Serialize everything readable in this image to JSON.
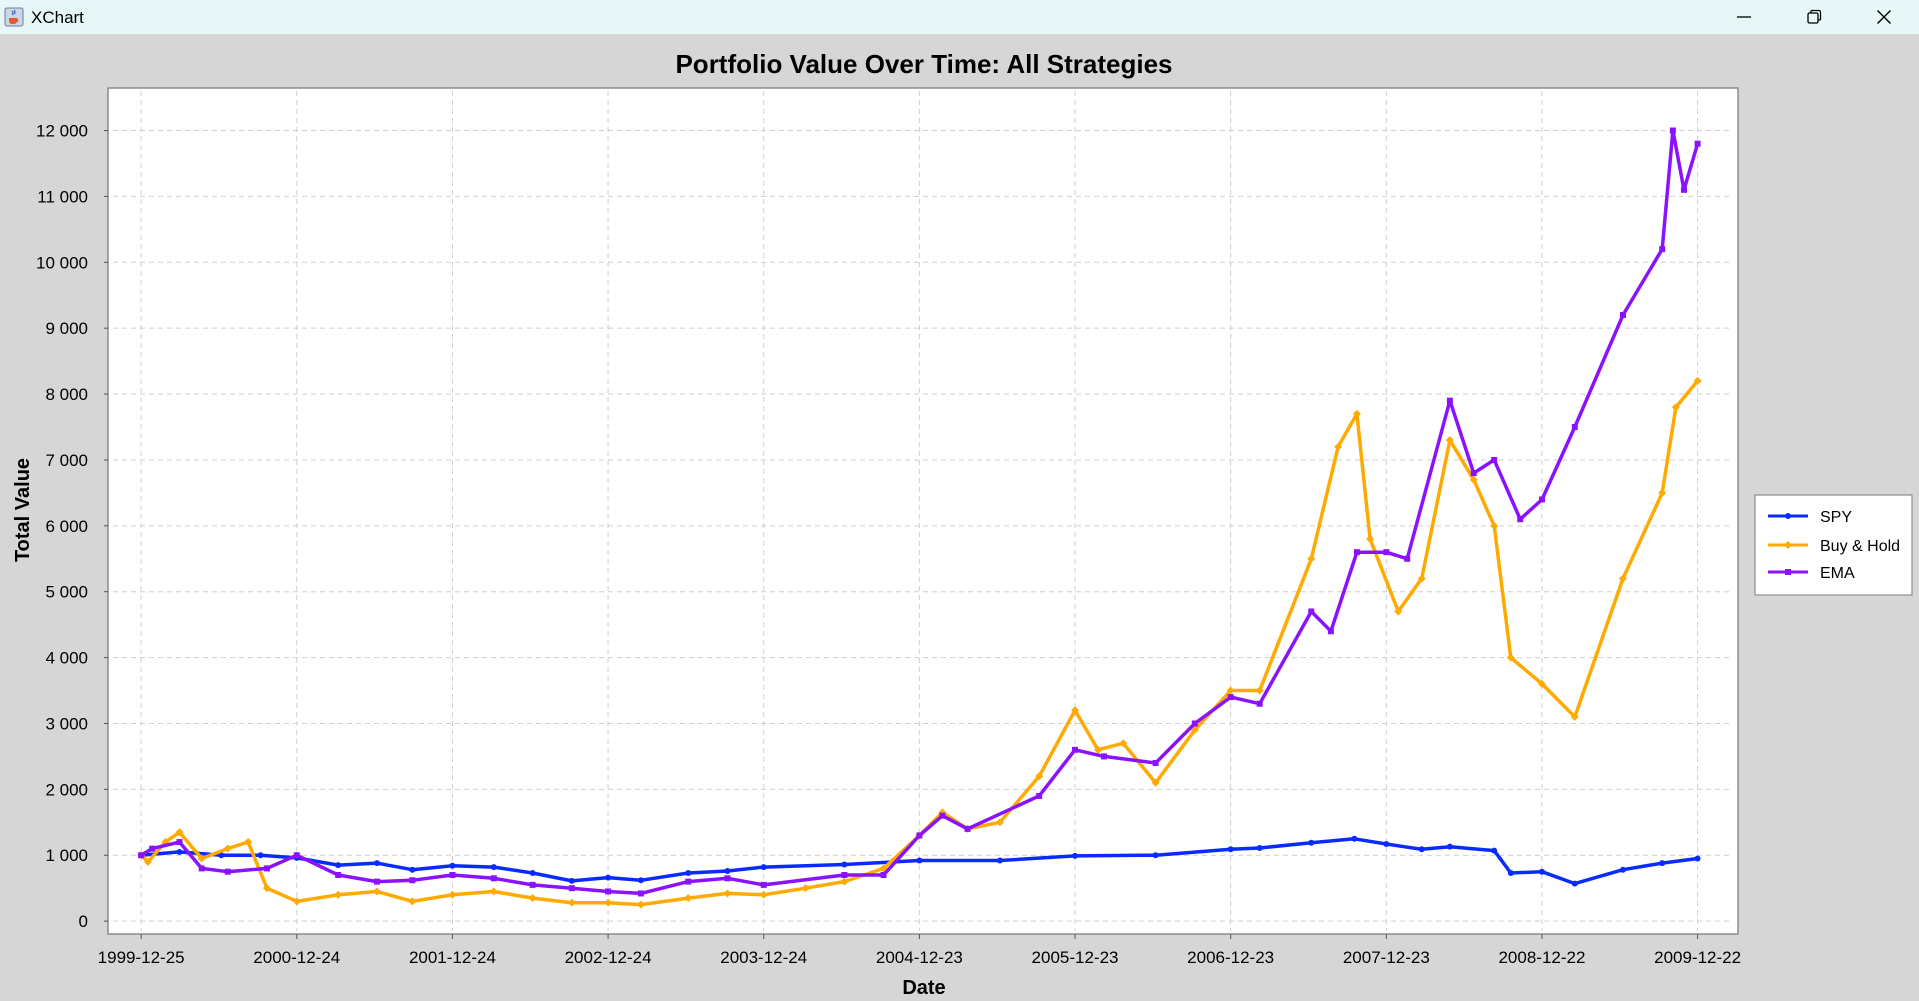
{
  "window": {
    "title": "XChart",
    "app_icon": "java-cup-icon",
    "controls": [
      "minimize-icon",
      "restore-icon",
      "close-icon"
    ]
  },
  "colors": {
    "window_bg": "#d6d6d6",
    "titlebar_bg": "#e7f6f6",
    "plot_bg": "#ffffff",
    "grid": "#cfcfcf"
  },
  "chart_data": {
    "type": "line",
    "title": "Portfolio Value Over Time: All Strategies",
    "xlabel": "Date",
    "ylabel": "Total Value",
    "x_ticks": [
      "1999-12-25",
      "2000-12-24",
      "2001-12-24",
      "2002-12-24",
      "2003-12-24",
      "2004-12-23",
      "2005-12-23",
      "2006-12-23",
      "2007-12-23",
      "2008-12-22",
      "2009-12-22"
    ],
    "y_ticks": [
      "0",
      "1 000",
      "2 000",
      "3 000",
      "4 000",
      "5 000",
      "6 000",
      "7 000",
      "8 000",
      "9 000",
      "10 000",
      "11 000",
      "12 000"
    ],
    "ylim": [
      -150,
      12600
    ],
    "xlim": [
      "1999-10-20",
      "2010-03-15"
    ],
    "grid": true,
    "legend_position": "right",
    "series": [
      {
        "name": "SPY",
        "color": "#0a2bff",
        "marker": "circle",
        "points": [
          [
            "1999-12-25",
            1000
          ],
          [
            "2000-03-24",
            1050
          ],
          [
            "2000-06-30",
            1000
          ],
          [
            "2000-09-30",
            1000
          ],
          [
            "2000-12-24",
            960
          ],
          [
            "2001-03-31",
            850
          ],
          [
            "2001-06-30",
            880
          ],
          [
            "2001-09-21",
            780
          ],
          [
            "2001-12-24",
            840
          ],
          [
            "2002-03-31",
            820
          ],
          [
            "2002-06-30",
            730
          ],
          [
            "2002-09-30",
            610
          ],
          [
            "2002-12-24",
            660
          ],
          [
            "2003-03-11",
            620
          ],
          [
            "2003-06-30",
            730
          ],
          [
            "2003-09-30",
            760
          ],
          [
            "2003-12-24",
            820
          ],
          [
            "2004-06-30",
            860
          ],
          [
            "2004-12-23",
            920
          ],
          [
            "2005-06-30",
            920
          ],
          [
            "2005-12-23",
            990
          ],
          [
            "2006-06-30",
            1000
          ],
          [
            "2006-12-23",
            1090
          ],
          [
            "2007-03-01",
            1110
          ],
          [
            "2007-06-30",
            1190
          ],
          [
            "2007-10-09",
            1250
          ],
          [
            "2007-12-23",
            1170
          ],
          [
            "2008-03-15",
            1090
          ],
          [
            "2008-05-20",
            1130
          ],
          [
            "2008-09-01",
            1070
          ],
          [
            "2008-10-10",
            730
          ],
          [
            "2008-12-22",
            750
          ],
          [
            "2009-03-09",
            570
          ],
          [
            "2009-06-30",
            780
          ],
          [
            "2009-09-30",
            880
          ],
          [
            "2009-12-22",
            950
          ]
        ]
      },
      {
        "name": "Buy & Hold",
        "color": "#ffaa00",
        "marker": "diamond",
        "points": [
          [
            "1999-12-25",
            1000
          ],
          [
            "2000-01-10",
            900
          ],
          [
            "2000-02-20",
            1200
          ],
          [
            "2000-03-24",
            1350
          ],
          [
            "2000-05-15",
            950
          ],
          [
            "2000-07-15",
            1100
          ],
          [
            "2000-09-01",
            1200
          ],
          [
            "2000-10-15",
            500
          ],
          [
            "2000-12-24",
            300
          ],
          [
            "2001-03-31",
            400
          ],
          [
            "2001-06-30",
            450
          ],
          [
            "2001-09-21",
            300
          ],
          [
            "2001-12-24",
            400
          ],
          [
            "2002-03-31",
            450
          ],
          [
            "2002-06-30",
            350
          ],
          [
            "2002-09-30",
            280
          ],
          [
            "2002-12-24",
            280
          ],
          [
            "2003-03-11",
            250
          ],
          [
            "2003-06-30",
            350
          ],
          [
            "2003-09-30",
            420
          ],
          [
            "2003-12-24",
            400
          ],
          [
            "2004-03-31",
            500
          ],
          [
            "2004-06-30",
            600
          ],
          [
            "2004-09-30",
            800
          ],
          [
            "2004-12-23",
            1300
          ],
          [
            "2005-02-15",
            1650
          ],
          [
            "2005-04-15",
            1400
          ],
          [
            "2005-06-30",
            1500
          ],
          [
            "2005-09-30",
            2200
          ],
          [
            "2005-12-23",
            3200
          ],
          [
            "2006-02-15",
            2600
          ],
          [
            "2006-04-15",
            2700
          ],
          [
            "2006-06-30",
            2100
          ],
          [
            "2006-09-30",
            2900
          ],
          [
            "2006-12-23",
            3500
          ],
          [
            "2007-03-01",
            3500
          ],
          [
            "2007-06-30",
            5500
          ],
          [
            "2007-09-01",
            7200
          ],
          [
            "2007-10-15",
            7700
          ],
          [
            "2007-11-15",
            5800
          ],
          [
            "2008-01-20",
            4700
          ],
          [
            "2008-03-15",
            5200
          ],
          [
            "2008-05-20",
            7300
          ],
          [
            "2008-07-15",
            6700
          ],
          [
            "2008-09-01",
            6000
          ],
          [
            "2008-10-10",
            4000
          ],
          [
            "2008-12-22",
            3600
          ],
          [
            "2009-03-09",
            3100
          ],
          [
            "2009-06-30",
            5200
          ],
          [
            "2009-09-30",
            6500
          ],
          [
            "2009-11-01",
            7800
          ],
          [
            "2009-12-22",
            8200
          ]
        ]
      },
      {
        "name": "EMA",
        "color": "#8a12ff",
        "marker": "square",
        "points": [
          [
            "1999-12-25",
            1000
          ],
          [
            "2000-01-20",
            1100
          ],
          [
            "2000-03-24",
            1200
          ],
          [
            "2000-05-15",
            800
          ],
          [
            "2000-07-15",
            750
          ],
          [
            "2000-10-15",
            800
          ],
          [
            "2000-12-24",
            1000
          ],
          [
            "2001-03-31",
            700
          ],
          [
            "2001-06-30",
            600
          ],
          [
            "2001-09-21",
            620
          ],
          [
            "2001-12-24",
            700
          ],
          [
            "2002-03-31",
            650
          ],
          [
            "2002-06-30",
            550
          ],
          [
            "2002-09-30",
            500
          ],
          [
            "2002-12-24",
            450
          ],
          [
            "2003-03-11",
            420
          ],
          [
            "2003-06-30",
            600
          ],
          [
            "2003-09-30",
            650
          ],
          [
            "2003-12-24",
            550
          ],
          [
            "2004-06-30",
            700
          ],
          [
            "2004-09-30",
            700
          ],
          [
            "2004-12-23",
            1300
          ],
          [
            "2005-02-15",
            1600
          ],
          [
            "2005-04-15",
            1400
          ],
          [
            "2005-09-30",
            1900
          ],
          [
            "2005-12-23",
            2600
          ],
          [
            "2006-03-01",
            2500
          ],
          [
            "2006-06-30",
            2400
          ],
          [
            "2006-09-30",
            3000
          ],
          [
            "2006-12-23",
            3400
          ],
          [
            "2007-03-01",
            3300
          ],
          [
            "2007-06-30",
            4700
          ],
          [
            "2007-08-15",
            4400
          ],
          [
            "2007-10-15",
            5600
          ],
          [
            "2007-12-23",
            5600
          ],
          [
            "2008-02-10",
            5500
          ],
          [
            "2008-05-20",
            7900
          ],
          [
            "2008-07-15",
            6800
          ],
          [
            "2008-09-01",
            7000
          ],
          [
            "2008-11-01",
            6100
          ],
          [
            "2008-12-22",
            6400
          ],
          [
            "2009-03-09",
            7500
          ],
          [
            "2009-06-30",
            9200
          ],
          [
            "2009-09-30",
            10200
          ],
          [
            "2009-10-25",
            12000
          ],
          [
            "2009-11-20",
            11100
          ],
          [
            "2009-12-22",
            11800
          ]
        ]
      }
    ]
  }
}
